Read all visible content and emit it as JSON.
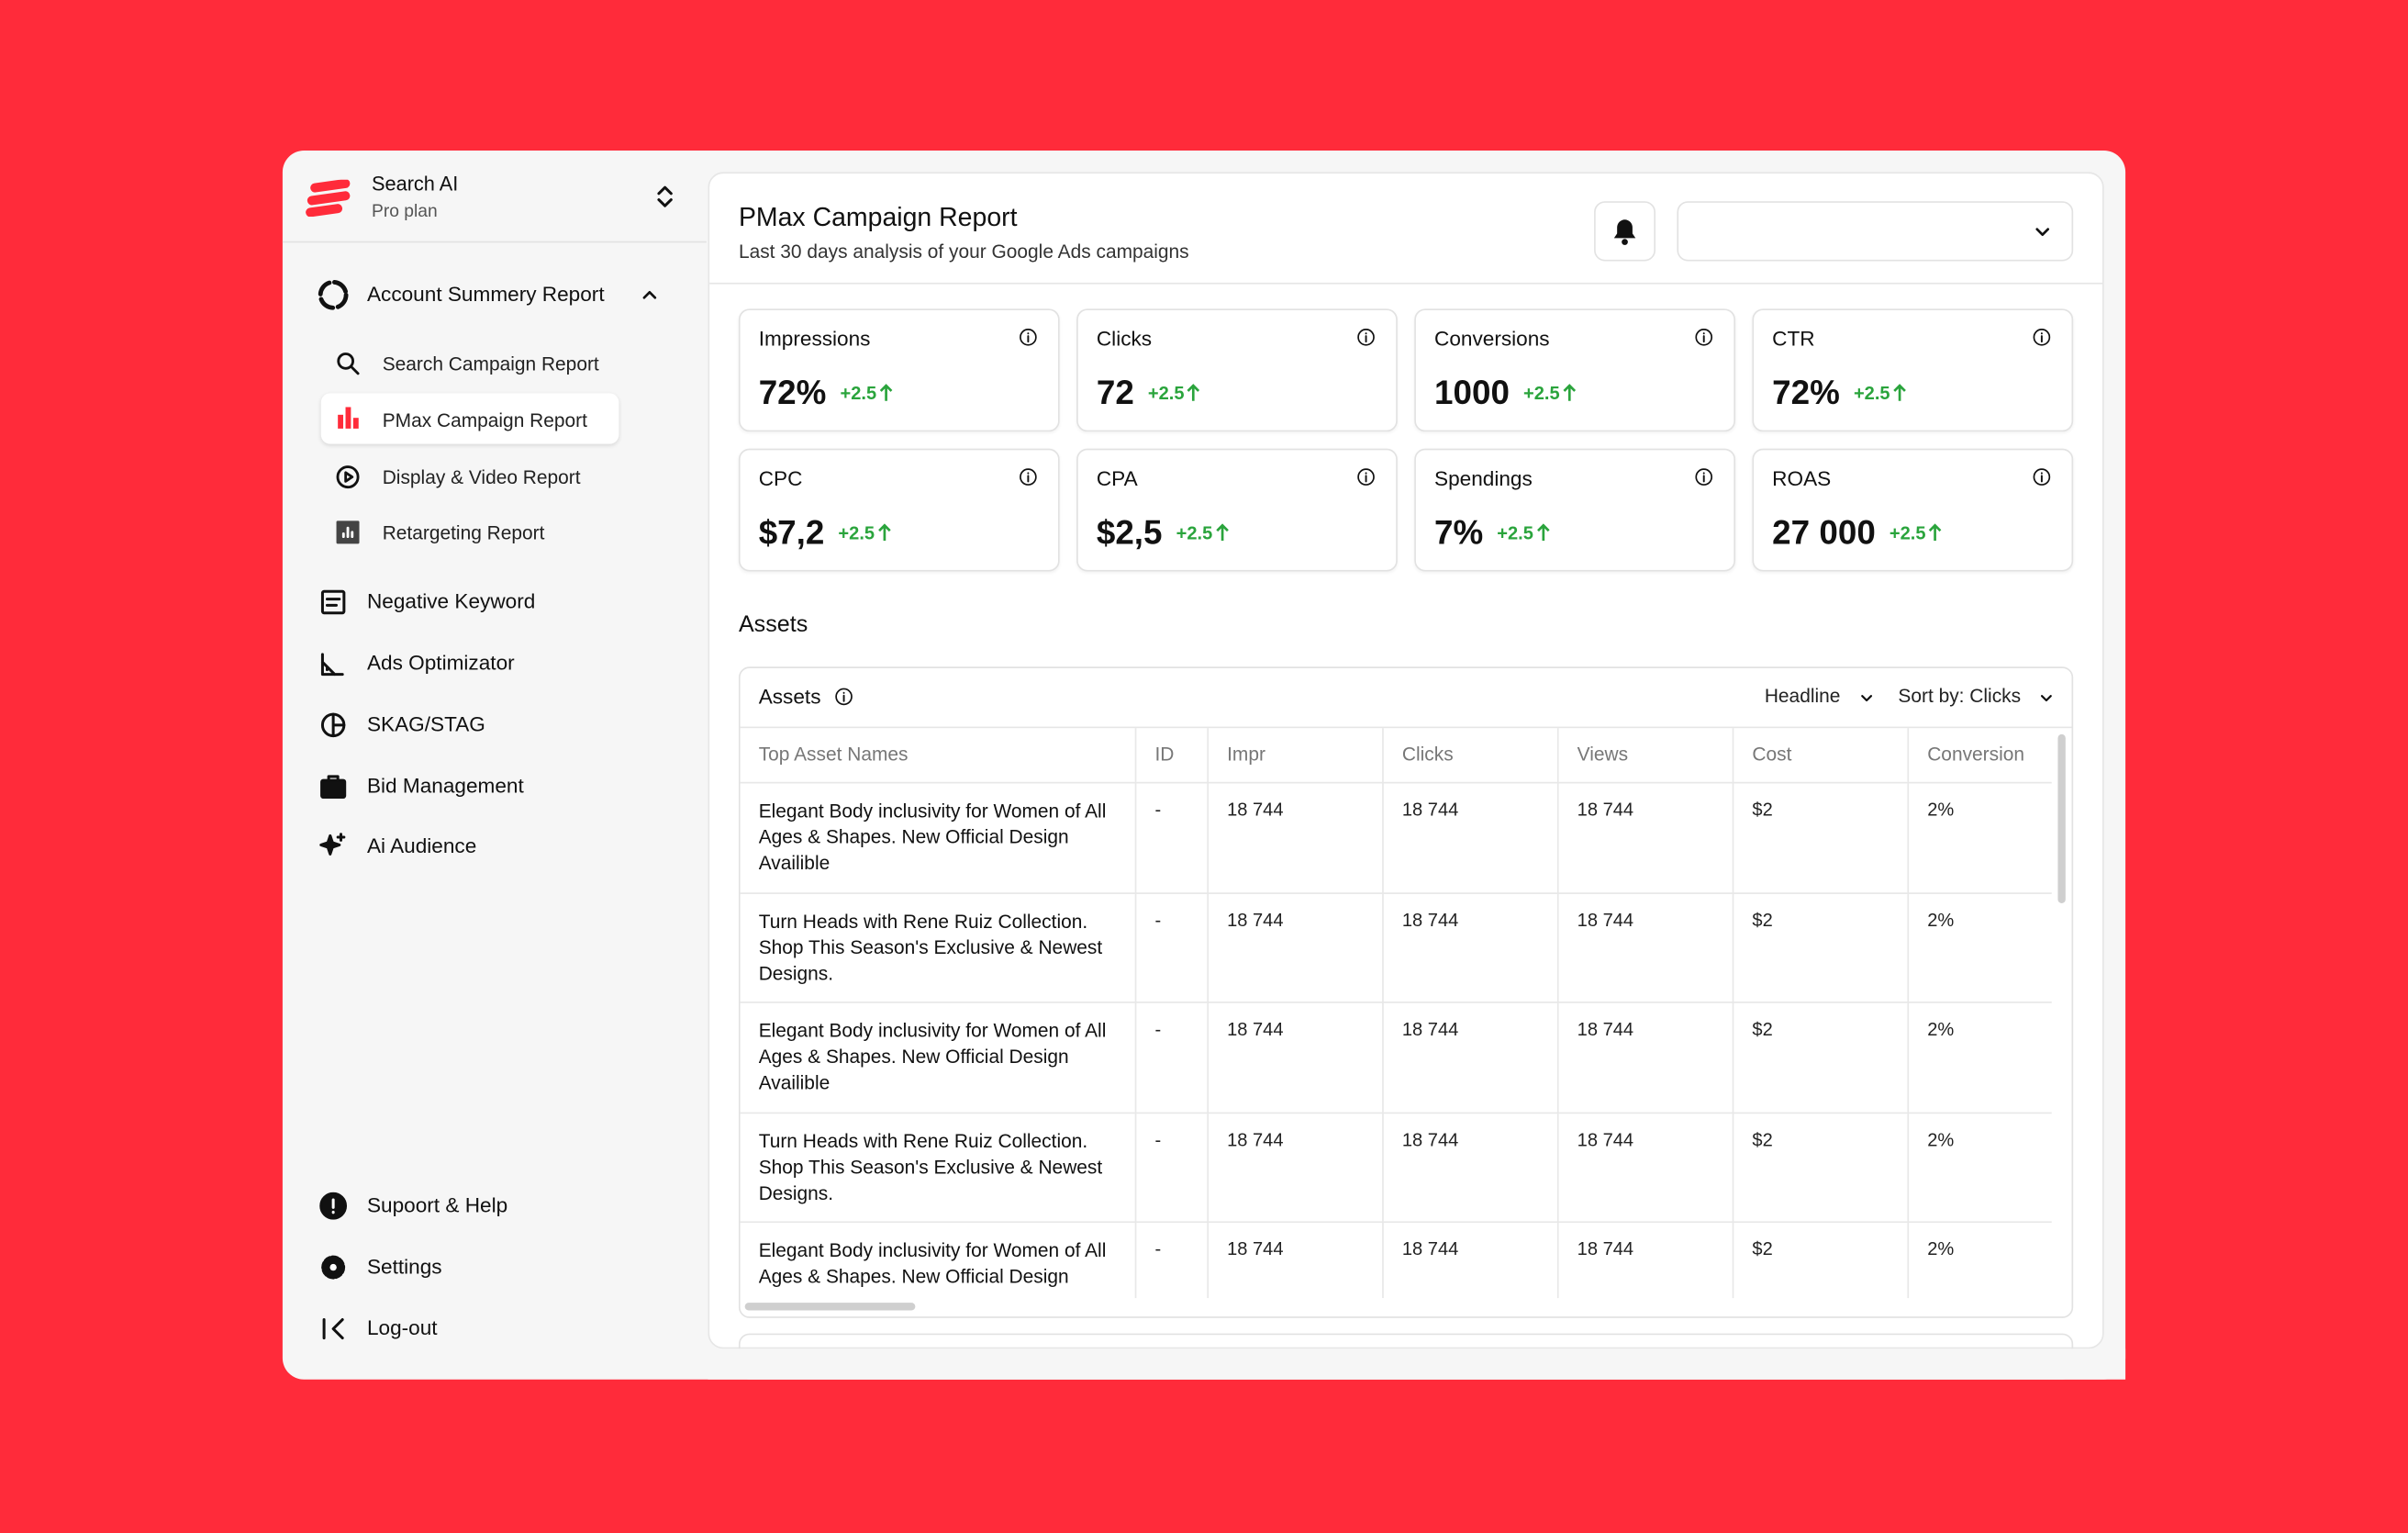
{
  "sidebar": {
    "brand": "Search AI",
    "plan": "Pro plan",
    "group": {
      "label": "Account Summery Report",
      "items": [
        "Search Campaign Report",
        "PMax Campaign Report",
        "Display & Video Report",
        "Retargeting Report"
      ]
    },
    "items": [
      "Negative Keyword",
      "Ads Optimizator",
      "SKAG/STAG",
      "Bid Management",
      "Ai Audience"
    ],
    "footer": [
      "Supoort & Help",
      "Settings",
      "Log-out"
    ]
  },
  "header": {
    "title": "PMax Campaign Report",
    "subtitle": "Last 30 days analysis of your Google Ads campaigns"
  },
  "metrics": [
    {
      "label": "Impressions",
      "value": "72%",
      "change": "+2.5"
    },
    {
      "label": "Clicks",
      "value": "72",
      "change": "+2.5"
    },
    {
      "label": "Conversions",
      "value": "1000",
      "change": "+2.5"
    },
    {
      "label": "CTR",
      "value": "72%",
      "change": "+2.5"
    },
    {
      "label": "CPC",
      "value": "$7,2",
      "change": "+2.5"
    },
    {
      "label": "CPA",
      "value": "$2,5",
      "change": "+2.5"
    },
    {
      "label": "Spendings",
      "value": "7%",
      "change": "+2.5"
    },
    {
      "label": "ROAS",
      "value": "27 000",
      "change": "+2.5"
    }
  ],
  "assets": {
    "section_title": "Assets",
    "table_title": "Assets",
    "filters": [
      "Headline",
      "Sort by: Clicks"
    ],
    "columns": [
      "Top Asset Names",
      "ID",
      "Impr",
      "Clicks",
      "Views",
      "Cost",
      "Conversion"
    ],
    "rows": [
      [
        "Elegant Body inclusivity for Women of All Ages & Shapes. New Official Design Availible",
        "-",
        "18 744",
        "18 744",
        "18 744",
        "$2",
        "2%"
      ],
      [
        "Turn Heads with Rene Ruiz Collection. Shop This Season's Exclusive & Newest Designs.",
        "-",
        "18 744",
        "18 744",
        "18 744",
        "$2",
        "2%"
      ],
      [
        "Elegant Body inclusivity for Women of All Ages & Shapes. New Official Design Availible",
        "-",
        "18 744",
        "18 744",
        "18 744",
        "$2",
        "2%"
      ],
      [
        "Turn Heads with Rene Ruiz Collection. Shop This Season's Exclusive & Newest Designs.",
        "-",
        "18 744",
        "18 744",
        "18 744",
        "$2",
        "2%"
      ],
      [
        "Elegant Body inclusivity for Women of All Ages & Shapes. New Official Design",
        "-",
        "18 744",
        "18 744",
        "18 744",
        "$2",
        "2%"
      ]
    ]
  }
}
